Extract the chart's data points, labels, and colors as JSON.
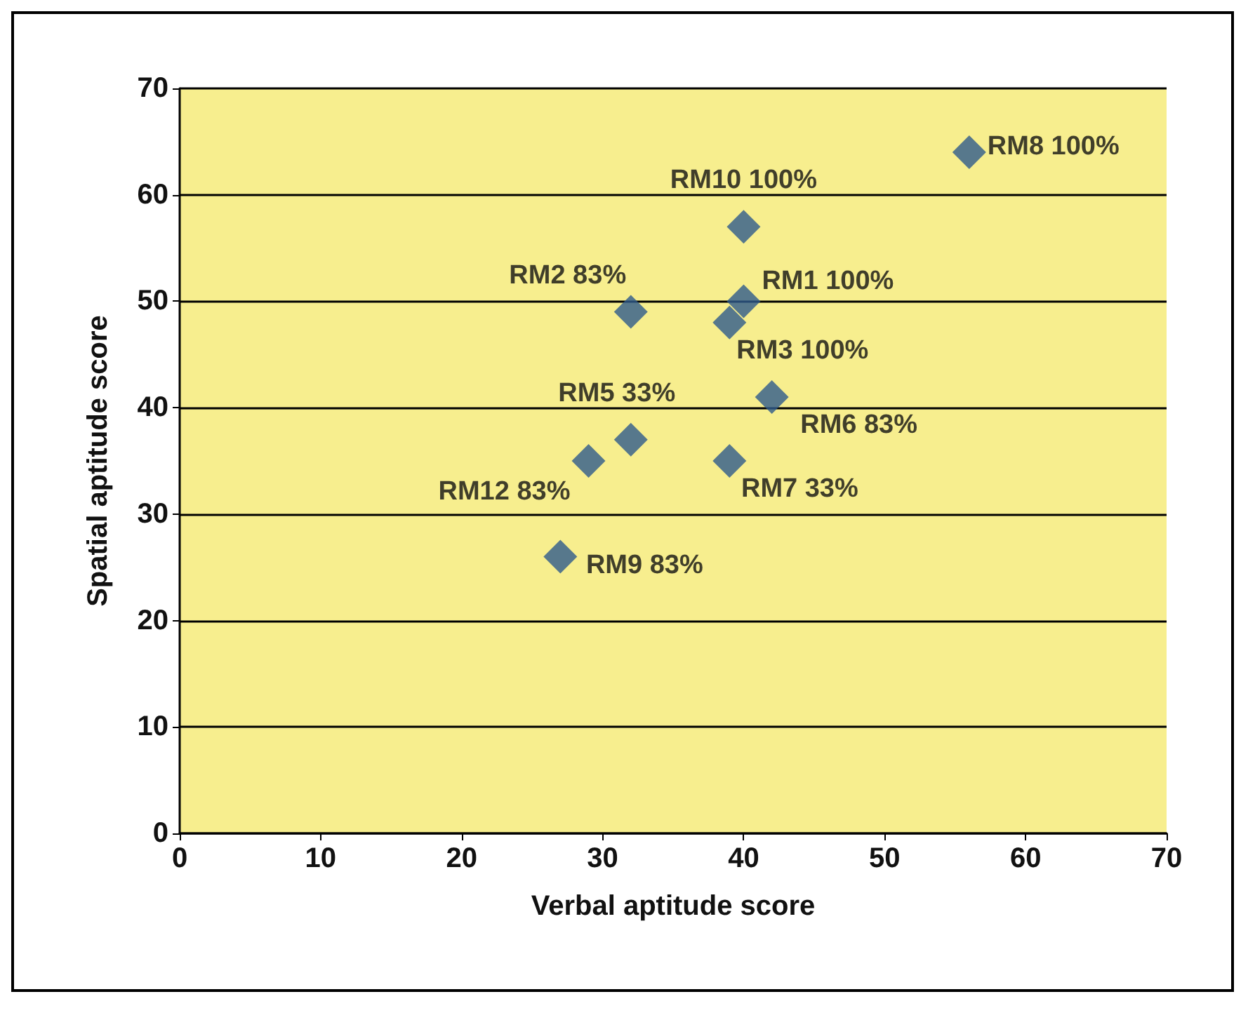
{
  "chart_data": {
    "type": "scatter",
    "xlabel": "Verbal aptitude score",
    "ylabel": "Spatial aptitude score",
    "x": [
      56,
      40,
      40,
      39,
      32,
      42,
      32,
      29,
      39,
      27
    ],
    "series": [
      {
        "color": "#2e5a8c",
        "values": [
          64,
          57,
          50,
          48,
          49,
          41,
          37,
          35,
          35,
          26
        ]
      }
    ],
    "annotations": [
      {
        "text": "RM8 100%",
        "x": 56,
        "y": 64
      },
      {
        "text": "RM10 100%",
        "x": 40,
        "y": 57
      },
      {
        "text": "RM1 100%",
        "x": 40,
        "y": 50
      },
      {
        "text": "RM3 100%",
        "x": 39,
        "y": 48
      },
      {
        "text": "RM2 83%",
        "x": 32,
        "y": 49
      },
      {
        "text": "RM6 83%",
        "x": 42,
        "y": 41
      },
      {
        "text": "RM5 33%",
        "x": 32,
        "y": 37
      },
      {
        "text": "RM12 83%",
        "x": 29,
        "y": 35
      },
      {
        "text": "RM7 33%",
        "x": 39,
        "y": 35
      },
      {
        "text": "RM9 83%",
        "x": 27,
        "y": 26
      }
    ],
    "xlim": [
      0,
      70
    ],
    "ylim": [
      0,
      70
    ],
    "xticks": [
      0,
      10,
      20,
      30,
      40,
      50,
      60,
      70
    ],
    "yticks": [
      0,
      10,
      20,
      30,
      40,
      50,
      60,
      70
    ],
    "grid": "y",
    "marker": "diamond"
  }
}
